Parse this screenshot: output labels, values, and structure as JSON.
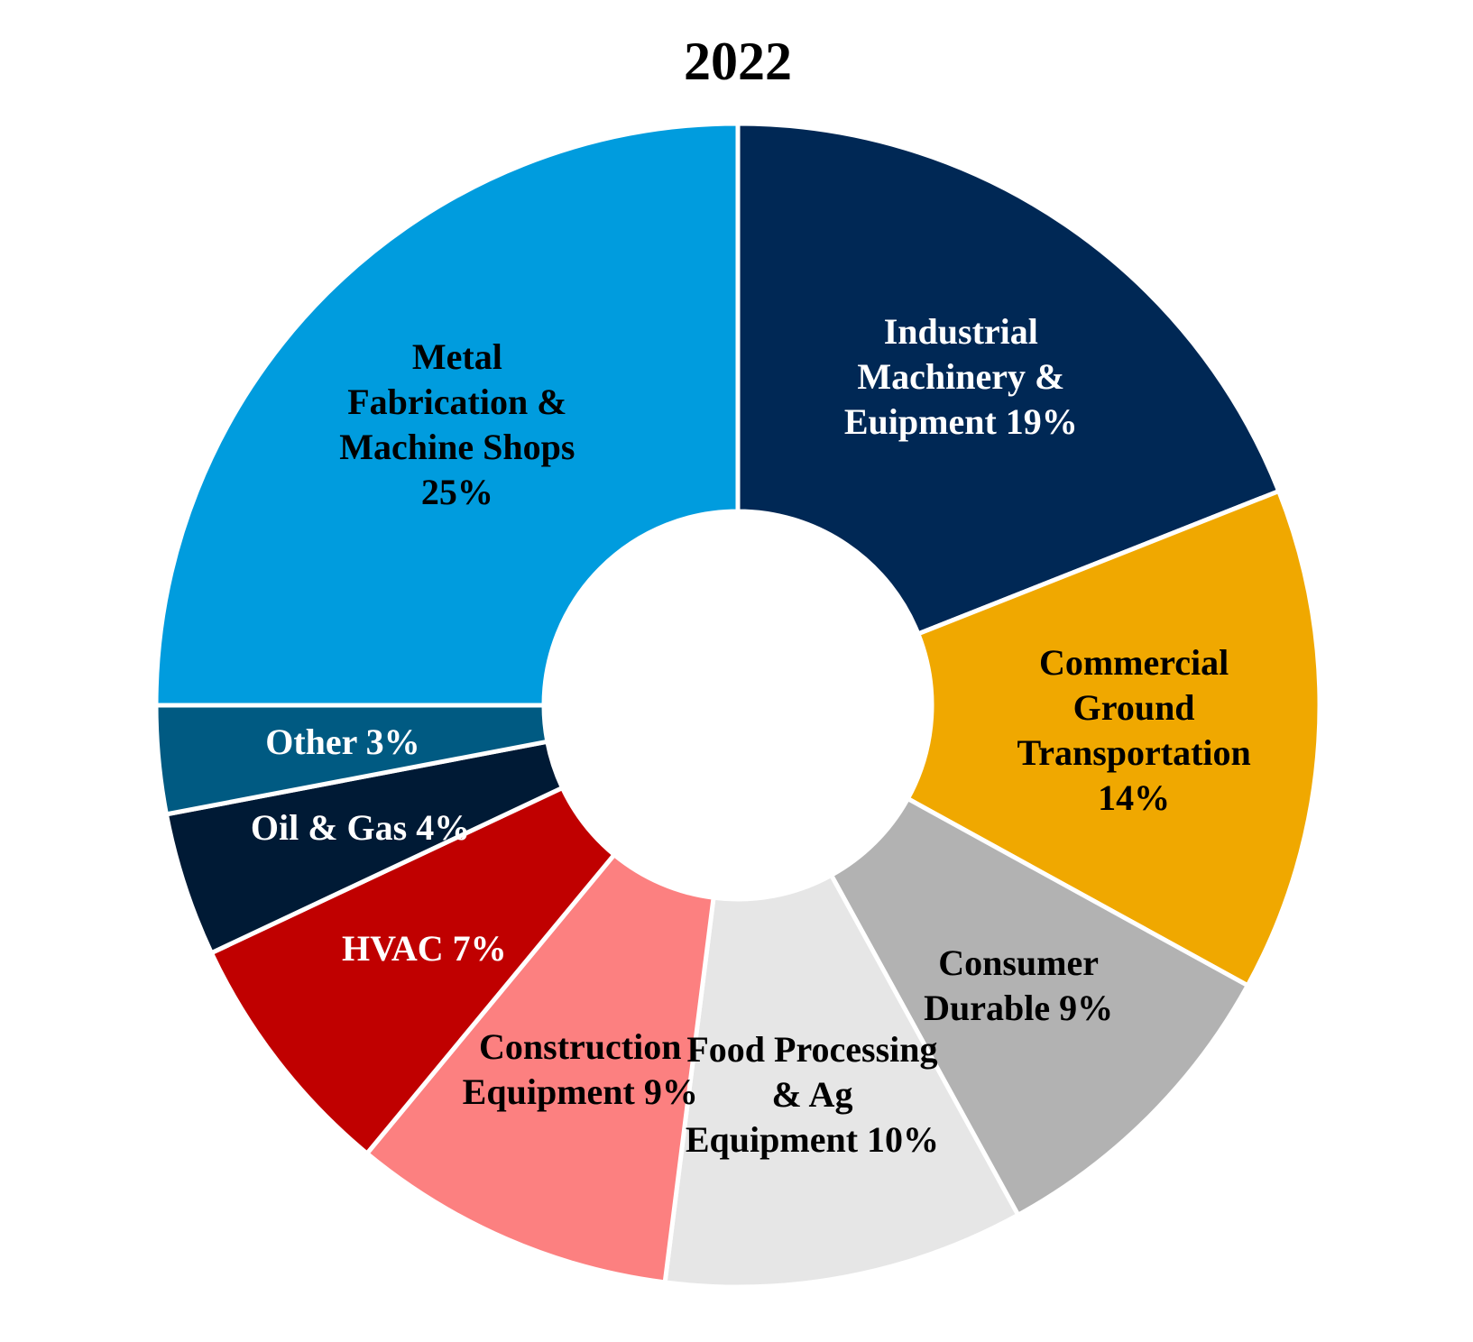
{
  "chart_data": {
    "type": "donut",
    "title": "2022",
    "categories": [
      "Industrial Machinery & Euipment",
      "Commercial Ground Transportation",
      "Consumer Durable",
      "Food Processing & Ag Equipment",
      "Construction Equipment",
      "HVAC",
      "Oil & Gas",
      "Other",
      "Metal Fabrication & Machine Shops"
    ],
    "values": [
      19,
      14,
      9,
      10,
      9,
      7,
      4,
      3,
      25
    ],
    "value_labels": [
      "19%",
      "14%",
      "9%",
      "10%",
      "9%",
      "7%",
      "4%",
      "3%",
      "25%"
    ],
    "colors": [
      "#002855",
      "#f0a800",
      "#b2b2b2",
      "#e6e6e6",
      "#fc8080",
      "#c00000",
      "#001a35",
      "#005a82",
      "#009cde"
    ],
    "label_colors": [
      "#ffffff",
      "#000000",
      "#000000",
      "#000000",
      "#000000",
      "#ffffff",
      "#ffffff",
      "#ffffff",
      "#000000"
    ]
  }
}
